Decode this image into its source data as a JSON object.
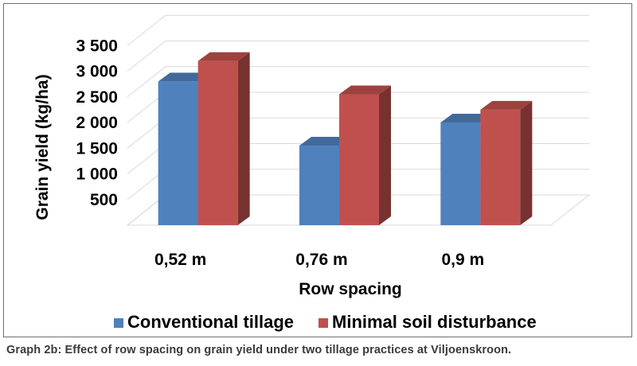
{
  "caption": "Graph 2b: Effect of row spacing on grain yield under two tillage practices at Viljoenskroon.",
  "chart_data": {
    "type": "bar",
    "style": "3d-clustered-column",
    "categories": [
      "0,52 m",
      "0,76 m",
      "0,9 m"
    ],
    "series": [
      {
        "name": "Conventional tillage",
        "values": [
          2800,
          1550,
          2000
        ],
        "color": "#4f81bd"
      },
      {
        "name": "Minimal soil disturbance",
        "values": [
          3200,
          2550,
          2250
        ],
        "color": "#c0504d"
      }
    ],
    "title": "",
    "xlabel": "Row spacing",
    "ylabel": "Grain yield (kg/ha)",
    "ylim": [
      0,
      3500
    ],
    "yticks": [
      500,
      1000,
      1500,
      2000,
      2500,
      3000,
      3500
    ],
    "ytick_labels": [
      "500",
      "1 000",
      "1 500",
      "2 000",
      "2 500",
      "3 000",
      "3 500"
    ],
    "grid": true,
    "legend_position": "bottom"
  }
}
